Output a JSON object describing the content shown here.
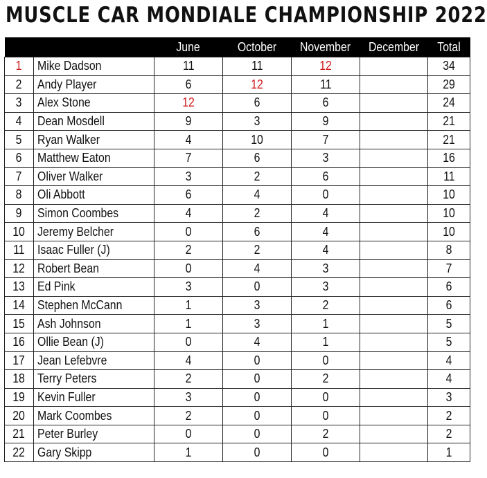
{
  "title": "MUSCLE CAR MONDIALE CHAMPIONSHIP 2022",
  "highlight_color": "#d01818",
  "columns": [
    "",
    "",
    "June",
    "October",
    "November",
    "December",
    "Total"
  ],
  "rows": [
    {
      "pos": "1",
      "name": "Mike Dadson",
      "june": "11",
      "october": "11",
      "november": "12",
      "december": "",
      "total": "34",
      "red": [
        "pos",
        "november"
      ]
    },
    {
      "pos": "2",
      "name": "Andy Player",
      "june": "6",
      "october": "12",
      "november": "11",
      "december": "",
      "total": "29",
      "red": [
        "october"
      ]
    },
    {
      "pos": "3",
      "name": "Alex Stone",
      "june": "12",
      "october": "6",
      "november": "6",
      "december": "",
      "total": "24",
      "red": [
        "june"
      ]
    },
    {
      "pos": "4",
      "name": "Dean Mosdell",
      "june": "9",
      "october": "3",
      "november": "9",
      "december": "",
      "total": "21",
      "red": []
    },
    {
      "pos": "5",
      "name": "Ryan Walker",
      "june": "4",
      "october": "10",
      "november": "7",
      "december": "",
      "total": "21",
      "red": []
    },
    {
      "pos": "6",
      "name": "Matthew Eaton",
      "june": "7",
      "october": "6",
      "november": "3",
      "december": "",
      "total": "16",
      "red": []
    },
    {
      "pos": "7",
      "name": "Oliver Walker",
      "june": "3",
      "october": "2",
      "november": "6",
      "december": "",
      "total": "11",
      "red": []
    },
    {
      "pos": "8",
      "name": "Oli Abbott",
      "june": "6",
      "october": "4",
      "november": "0",
      "december": "",
      "total": "10",
      "red": []
    },
    {
      "pos": "9",
      "name": "Simon Coombes",
      "june": "4",
      "october": "2",
      "november": "4",
      "december": "",
      "total": "10",
      "red": []
    },
    {
      "pos": "10",
      "name": "Jeremy Belcher",
      "june": "0",
      "october": "6",
      "november": "4",
      "december": "",
      "total": "10",
      "red": []
    },
    {
      "pos": "11",
      "name": "Isaac Fuller (J)",
      "june": "2",
      "october": "2",
      "november": "4",
      "december": "",
      "total": "8",
      "red": []
    },
    {
      "pos": "12",
      "name": "Robert Bean",
      "june": "0",
      "october": "4",
      "november": "3",
      "december": "",
      "total": "7",
      "red": []
    },
    {
      "pos": "13",
      "name": "Ed Pink",
      "june": "3",
      "october": "0",
      "november": "3",
      "december": "",
      "total": "6",
      "red": []
    },
    {
      "pos": "14",
      "name": "Stephen McCann",
      "june": "1",
      "october": "3",
      "november": "2",
      "december": "",
      "total": "6",
      "red": []
    },
    {
      "pos": "15",
      "name": "Ash Johnson",
      "june": "1",
      "october": "3",
      "november": "1",
      "december": "",
      "total": "5",
      "red": []
    },
    {
      "pos": "16",
      "name": "Ollie Bean (J)",
      "june": "0",
      "october": "4",
      "november": "1",
      "december": "",
      "total": "5",
      "red": []
    },
    {
      "pos": "17",
      "name": "Jean Lefebvre",
      "june": "4",
      "october": "0",
      "november": "0",
      "december": "",
      "total": "4",
      "red": []
    },
    {
      "pos": "18",
      "name": "Terry Peters",
      "june": "2",
      "october": "0",
      "november": "2",
      "december": "",
      "total": "4",
      "red": []
    },
    {
      "pos": "19",
      "name": "Kevin Fuller",
      "june": "3",
      "october": "0",
      "november": "0",
      "december": "",
      "total": "3",
      "red": []
    },
    {
      "pos": "20",
      "name": "Mark Coombes",
      "june": "2",
      "october": "0",
      "november": "0",
      "december": "",
      "total": "2",
      "red": []
    },
    {
      "pos": "21",
      "name": "Peter Burley",
      "june": "0",
      "october": "0",
      "november": "2",
      "december": "",
      "total": "2",
      "red": []
    },
    {
      "pos": "22",
      "name": "Gary Skipp",
      "june": "1",
      "october": "0",
      "november": "0",
      "december": "",
      "total": "1",
      "red": []
    }
  ]
}
